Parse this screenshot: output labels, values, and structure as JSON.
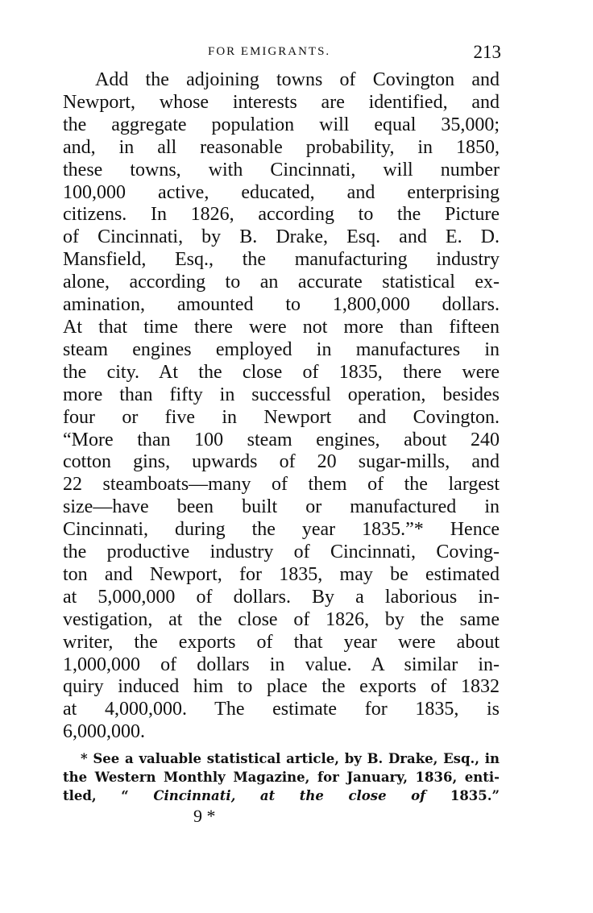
{
  "header": {
    "running_head": "FOR EMIGRANTS.",
    "page_number": "213"
  },
  "body_lines": [
    "Add the adjoining towns of Covington and",
    "Newport, whose interests are identified, and",
    "the aggregate population will equal 35,000;",
    "and, in all reasonable probability, in 1850,",
    "these towns, with Cincinnati, will number",
    "100,000 active, educated, and enterprising",
    "citizens. In 1826, according to the Picture",
    "of Cincinnati, by B. Drake, Esq. and E. D.",
    "Mansfield, Esq., the manufacturing industry",
    "alone, according to an accurate statistical ex-",
    "amination, amounted to 1,800,000 dollars.",
    "At that time there were not more than fifteen",
    "steam engines employed in manufactures in",
    "the city. At the close of 1835, there were",
    "more than fifty in successful operation, besides",
    "four or five in Newport and Covington.",
    "“More than 100 steam engines, about 240",
    "cotton gins, upwards of 20 sugar-mills, and",
    "22 steamboats—many of them of the largest",
    "size—have been built or manufactured in",
    "Cincinnati, during the year 1835.”* Hence",
    "the productive industry of Cincinnati, Coving-",
    "ton and Newport, for 1835, may be estimated",
    "at 5,000,000 of dollars. By a laborious in-",
    "vestigation, at the close of 1826, by the same",
    "writer, the exports of that year were about",
    "1,000,000 of dollars in value. A similar in-",
    "quiry induced him to place the exports of 1832",
    "at 4,000,000. The estimate for 1835, is",
    "6,000,000."
  ],
  "footnote": {
    "line1": "* See a valuable statistical article, by B. Drake, Esq., in",
    "line2": "the Western Monthly Magazine, for January, 1836, enti-",
    "line3_start": "tled, “ ",
    "line3_italic": "Cincinnati, at the close of",
    "line3_end": " 1835.”"
  },
  "signature_mark": "9 *"
}
